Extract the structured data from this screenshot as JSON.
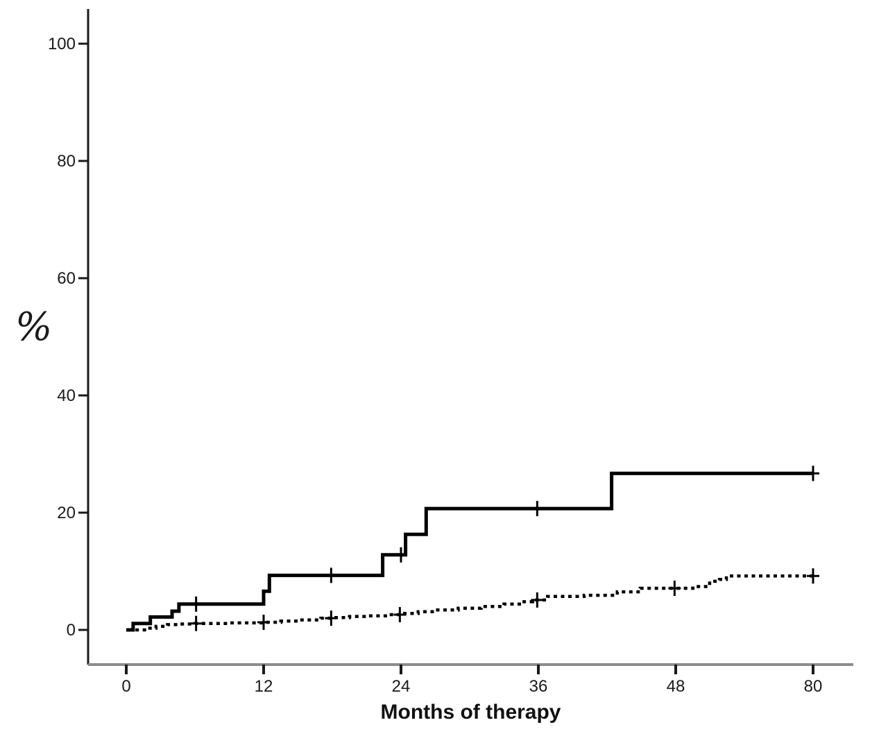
{
  "figure": {
    "background": "#ffffff"
  },
  "chart_data": {
    "type": "line",
    "subtype": "kaplan-meier-step",
    "title": "",
    "xlabel": "Months of therapy",
    "ylabel": "%",
    "x_tick_labels": [
      "0",
      "12",
      "24",
      "36",
      "48",
      "80"
    ],
    "x_tick_months": [
      0,
      12,
      24,
      36,
      48,
      80
    ],
    "y_tick_labels": [
      "0",
      "20",
      "40",
      "60",
      "80",
      "100"
    ],
    "y_tick_values": [
      0,
      20,
      40,
      60,
      80,
      100
    ],
    "ylim": [
      0,
      100
    ],
    "grid": false,
    "legend": "none",
    "colors": {
      "solid_curve": "#000000",
      "dotted_curve": "#000000",
      "y_axis": "#1a1a1a",
      "x_axis_line": "#8c8c8c",
      "tick": "#1a1a1a",
      "text": "#1a1a1a"
    },
    "series": [
      {
        "id": "solid-curve",
        "line_style": "solid",
        "points": [
          [
            0,
            0
          ],
          [
            0.6,
            1.1
          ],
          [
            2.1,
            2.2
          ],
          [
            4.0,
            3.2
          ],
          [
            4.6,
            4.4
          ],
          [
            12.0,
            6.6
          ],
          [
            12.5,
            9.3
          ],
          [
            22.4,
            12.8
          ],
          [
            24.4,
            16.3
          ],
          [
            26.2,
            20.7
          ],
          [
            42.4,
            26.7
          ],
          [
            80,
            26.7
          ]
        ],
        "censor_marks": [
          [
            6.1,
            4.4
          ],
          [
            17.9,
            9.3
          ],
          [
            24.0,
            12.8
          ],
          [
            35.9,
            20.7
          ],
          [
            80,
            26.7
          ]
        ]
      },
      {
        "id": "dotted-curve",
        "line_style": "dotted",
        "points": [
          [
            0.8,
            0
          ],
          [
            1.6,
            0.3
          ],
          [
            2.6,
            0.6
          ],
          [
            3.6,
            0.9
          ],
          [
            4.6,
            1.0
          ],
          [
            6.0,
            1.1
          ],
          [
            9.0,
            1.2
          ],
          [
            12.0,
            1.3
          ],
          [
            13.5,
            1.5
          ],
          [
            15.0,
            1.7
          ],
          [
            17.0,
            2.0
          ],
          [
            18.0,
            2.1
          ],
          [
            19.5,
            2.3
          ],
          [
            21.0,
            2.4
          ],
          [
            23.0,
            2.6
          ],
          [
            24.0,
            2.8
          ],
          [
            25.5,
            3.1
          ],
          [
            27.0,
            3.4
          ],
          [
            29.0,
            3.7
          ],
          [
            31.0,
            4.0
          ],
          [
            33.0,
            4.4
          ],
          [
            34.5,
            4.8
          ],
          [
            35.5,
            5.1
          ],
          [
            36.8,
            5.7
          ],
          [
            40.0,
            5.9
          ],
          [
            42.9,
            6.5
          ],
          [
            44.9,
            7.1
          ],
          [
            52.0,
            7.4
          ],
          [
            55.9,
            8.3
          ],
          [
            58.2,
            8.6
          ],
          [
            59.8,
            9.2
          ],
          [
            80,
            9.2
          ]
        ],
        "censor_marks": [
          [
            6.1,
            1.1
          ],
          [
            12.0,
            1.3
          ],
          [
            17.9,
            2.0
          ],
          [
            23.9,
            2.6
          ],
          [
            35.9,
            5.1
          ],
          [
            47.9,
            7.1
          ],
          [
            80,
            9.2
          ]
        ]
      }
    ]
  }
}
